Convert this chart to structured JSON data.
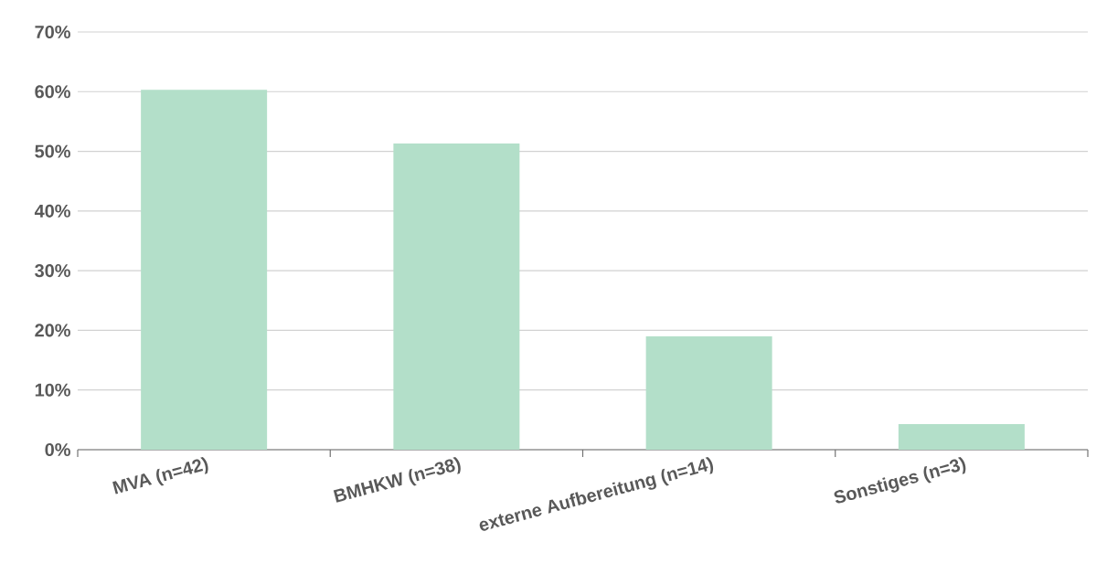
{
  "chart_data": {
    "type": "bar",
    "categories": [
      "MVA (n=42)",
      "BMHKW (n=38)",
      "externe Aufbereitung (n=14)",
      "Sonstiges (n=3)"
    ],
    "values": [
      60.3,
      51.3,
      19.0,
      4.3
    ],
    "color": "#b3dfc9",
    "ylim": [
      0,
      70
    ],
    "yticks": [
      {
        "value": 0,
        "label": "0%"
      },
      {
        "value": 10,
        "label": "10%"
      },
      {
        "value": 20,
        "label": "20%"
      },
      {
        "value": 30,
        "label": "30%"
      },
      {
        "value": 40,
        "label": "40%"
      },
      {
        "value": 50,
        "label": "50%"
      },
      {
        "value": 60,
        "label": "60%"
      },
      {
        "value": 70,
        "label": "70%"
      }
    ],
    "grid": "y"
  }
}
